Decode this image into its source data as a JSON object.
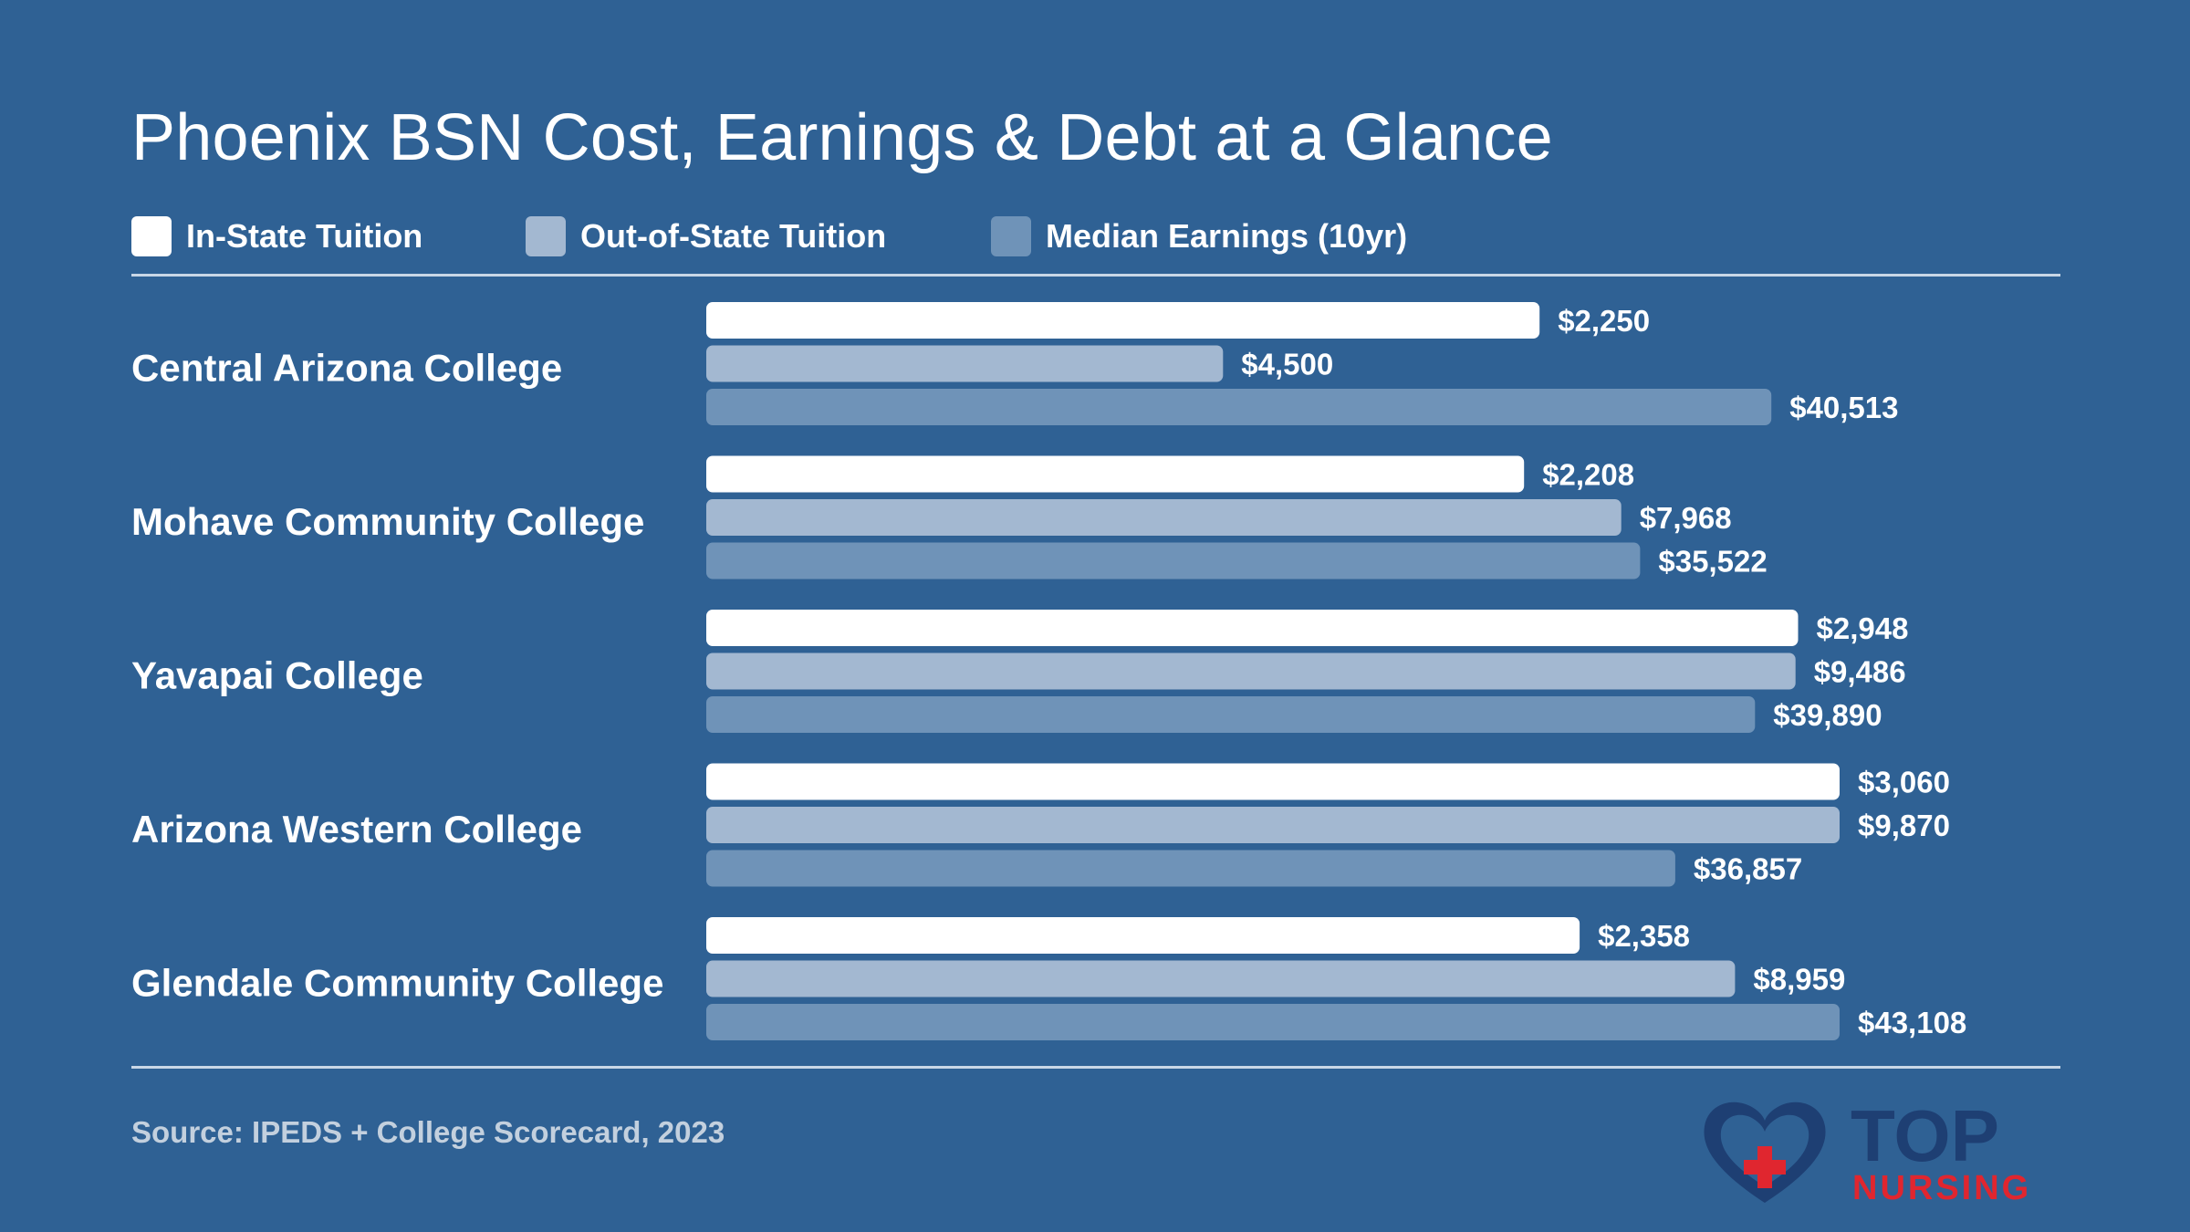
{
  "chart_data": {
    "type": "bar",
    "orientation": "horizontal",
    "title": "Phoenix BSN Cost, Earnings & Debt at a Glance",
    "categories": [
      "Central Arizona College",
      "Mohave Community College",
      "Yavapai College",
      "Arizona Western College",
      "Glendale Community College"
    ],
    "series": [
      {
        "name": "In-State Tuition",
        "color": "#ffffff",
        "values": [
          2250,
          2208,
          2948,
          3060,
          2358
        ],
        "labels": [
          "$2,250",
          "$2,208",
          "$2,948",
          "$3,060",
          "$2,358"
        ]
      },
      {
        "name": "Out-of-State Tuition",
        "color": "#a3b8d1",
        "values": [
          4500,
          7968,
          9486,
          9870,
          8959
        ],
        "labels": [
          "$4,500",
          "$7,968",
          "$9,486",
          "$9,870",
          "$8,959"
        ]
      },
      {
        "name": "Median Earnings (10yr)",
        "color": "#6f93b8",
        "values": [
          40513,
          35522,
          39890,
          36857,
          43108
        ],
        "labels": [
          "$40,513",
          "$35,522",
          "$39,890",
          "$36,857",
          "$43,108"
        ]
      }
    ],
    "legend_position": "top-left",
    "grid": false,
    "source": "Source: IPEDS + College Scorecard, 2023"
  },
  "logo": {
    "text_top": "TOP",
    "text_bottom": "NURSING",
    "heart_color": "#1e3f73",
    "accent_color": "#e0262f"
  }
}
